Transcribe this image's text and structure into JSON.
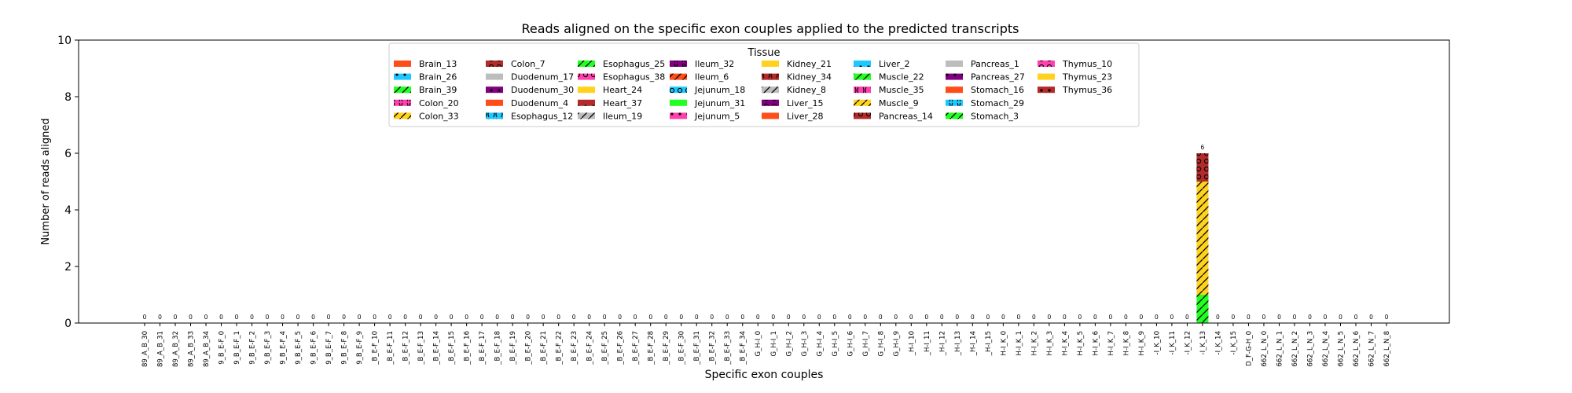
{
  "chart_data": {
    "type": "bar",
    "title": "Reads aligned on the specific exon couples applied to the predicted transcripts",
    "xlabel": "Specific exon couples",
    "ylabel": "Number of reads aligned",
    "ylim": [
      0,
      10
    ],
    "yticks": [
      "0",
      "2",
      "4",
      "6",
      "8",
      "10"
    ],
    "grid": false,
    "legend_placement": "upper-center",
    "legend_title": "Tissue",
    "categories": [
      "89_A_B_30",
      "89_A_B_31",
      "89_A_B_32",
      "89_A_B_33",
      "89_A_B_34",
      "9_B_E-F_0",
      "9_B_E-F_1",
      "9_B_E-F_2",
      "9_B_E-F_3",
      "9_B_E-F_4",
      "9_B_E-F_5",
      "9_B_E-F_6",
      "9_B_E-F_7",
      "9_B_E-F_8",
      "9_B_E-F_9",
      "_B_E-F_10",
      "_B_E-F_11",
      "_B_E-F_12",
      "_B_E-F_13",
      "_B_E-F_14",
      "_B_E-F_15",
      "_B_E-F_16",
      "_B_E-F_17",
      "_B_E-F_18",
      "_B_E-F_19",
      "_B_E-F_20",
      "_B_E-F_21",
      "_B_E-F_22",
      "_B_E-F_23",
      "_B_E-F_24",
      "_B_E-F_25",
      "_B_E-F_26",
      "_B_E-F_27",
      "_B_E-F_28",
      "_B_E-F_29",
      "_B_E-F_30",
      "_B_E-F_31",
      "_B_E-F_32",
      "_B_E-F_33",
      "_B_E-F_34",
      "G_H-I_0",
      "G_H-I_1",
      "G_H-I_2",
      "G_H-I_3",
      "G_H-I_4",
      "G_H-I_5",
      "G_H-I_6",
      "G_H-I_7",
      "G_H-I_8",
      "G_H-I_9",
      "_H-I_10",
      "_H-I_11",
      "_H-I_12",
      "_H-I_13",
      "_H-I_14",
      "_H-I_15",
      "H-I_K_0",
      "H-I_K_1",
      "H-I_K_2",
      "H-I_K_3",
      "H-I_K_4",
      "H-I_K_5",
      "H-I_K_6",
      "H-I_K_7",
      "H-I_K_8",
      "H-I_K_9",
      "-I_K_10",
      "-I_K_11",
      "-I_K_12",
      "-I_K_13",
      "-I_K_14",
      "-I_K_15",
      "D_F-G-H_0",
      "662_L_N_0",
      "662_L_N_1",
      "662_L_N_2",
      "662_L_N_3",
      "662_L_N_4",
      "662_L_N_5",
      "662_L_N_6",
      "662_L_N_7",
      "662_L_N_8"
    ],
    "totals": [
      0,
      0,
      0,
      0,
      0,
      0,
      0,
      0,
      0,
      0,
      0,
      0,
      0,
      0,
      0,
      0,
      0,
      0,
      0,
      0,
      0,
      0,
      0,
      0,
      0,
      0,
      0,
      0,
      0,
      0,
      0,
      0,
      0,
      0,
      0,
      0,
      0,
      0,
      0,
      0,
      0,
      0,
      0,
      0,
      0,
      0,
      0,
      0,
      0,
      0,
      0,
      0,
      0,
      0,
      0,
      0,
      0,
      0,
      0,
      0,
      0,
      0,
      0,
      0,
      0,
      0,
      0,
      0,
      0,
      6,
      0,
      0,
      0,
      0,
      0,
      0,
      0,
      0,
      0,
      0,
      0,
      0
    ],
    "total_labels": [
      "0",
      "0",
      "0",
      "0",
      "0",
      "0",
      "0",
      "0",
      "0",
      "0",
      "0",
      "0",
      "0",
      "0",
      "0",
      "0",
      "0",
      "0",
      "0",
      "0",
      "0",
      "0",
      "0",
      "0",
      "0",
      "0",
      "0",
      "0",
      "0",
      "0",
      "0",
      "0",
      "0",
      "0",
      "0",
      "0",
      "0",
      "0",
      "0",
      "0",
      "0",
      "0",
      "0",
      "0",
      "0",
      "0",
      "0",
      "0",
      "0",
      "0",
      "0",
      "0",
      "0",
      "0",
      "0",
      "0",
      "0",
      "0",
      "0",
      "0",
      "0",
      "0",
      "0",
      "0",
      "0",
      "0",
      "0",
      "0",
      "0",
      "6",
      "0",
      "0",
      "0",
      "0",
      "0",
      "0",
      "0",
      "0",
      "0",
      "0",
      "0",
      "0"
    ],
    "stacks": [
      {
        "category_index": 69,
        "segments": [
          {
            "series": "Muscle_22",
            "value": 1
          },
          {
            "series": "Muscle_9",
            "value": 4
          },
          {
            "series": "Pancreas_14",
            "value": 1
          }
        ]
      }
    ],
    "legend_entries": [
      {
        "name": "Brain_13",
        "color": "#ff4d1a",
        "pattern": "none"
      },
      {
        "name": "Brain_26",
        "color": "#1ec8ff",
        "pattern": "dots"
      },
      {
        "name": "Brain_39",
        "color": "#22ff22",
        "pattern": "slash"
      },
      {
        "name": "Colon_20",
        "color": "#ff3fae",
        "pattern": "ring"
      },
      {
        "name": "Colon_33",
        "color": "#ffd21f",
        "pattern": "slash"
      },
      {
        "name": "Colon_7",
        "color": "#b22a2a",
        "pattern": "circles"
      },
      {
        "name": "Duodenum_17",
        "color": "#bdbdbd",
        "pattern": "none"
      },
      {
        "name": "Duodenum_30",
        "color": "#800080",
        "pattern": "dots"
      },
      {
        "name": "Duodenum_4",
        "color": "#ff4d1a",
        "pattern": "none"
      },
      {
        "name": "Esophagus_12",
        "color": "#1ec8ff",
        "pattern": "ring"
      },
      {
        "name": "Esophagus_25",
        "color": "#22ff22",
        "pattern": "slash"
      },
      {
        "name": "Esophagus_38",
        "color": "#ff3fae",
        "pattern": "circles"
      },
      {
        "name": "Heart_24",
        "color": "#ffd21f",
        "pattern": "none"
      },
      {
        "name": "Heart_37",
        "color": "#b22a2a",
        "pattern": "dots"
      },
      {
        "name": "Ileum_19",
        "color": "#bdbdbd",
        "pattern": "slash"
      },
      {
        "name": "Ileum_32",
        "color": "#800080",
        "pattern": "ring"
      },
      {
        "name": "Ileum_6",
        "color": "#ff4d1a",
        "pattern": "slash"
      },
      {
        "name": "Jejunum_18",
        "color": "#1ec8ff",
        "pattern": "circles"
      },
      {
        "name": "Jejunum_31",
        "color": "#22ff22",
        "pattern": "none"
      },
      {
        "name": "Jejunum_5",
        "color": "#ff3fae",
        "pattern": "dots"
      },
      {
        "name": "Kidney_21",
        "color": "#ffd21f",
        "pattern": "none"
      },
      {
        "name": "Kidney_34",
        "color": "#b22a2a",
        "pattern": "ring"
      },
      {
        "name": "Kidney_8",
        "color": "#bdbdbd",
        "pattern": "slash"
      },
      {
        "name": "Liver_15",
        "color": "#800080",
        "pattern": "circles"
      },
      {
        "name": "Liver_28",
        "color": "#ff4d1a",
        "pattern": "none"
      },
      {
        "name": "Liver_2",
        "color": "#1ec8ff",
        "pattern": "dots"
      },
      {
        "name": "Muscle_22",
        "color": "#22ff22",
        "pattern": "slash"
      },
      {
        "name": "Muscle_35",
        "color": "#ff3fae",
        "pattern": "ring"
      },
      {
        "name": "Muscle_9",
        "color": "#ffd21f",
        "pattern": "slash"
      },
      {
        "name": "Pancreas_14",
        "color": "#b22a2a",
        "pattern": "circles"
      },
      {
        "name": "Pancreas_1",
        "color": "#bdbdbd",
        "pattern": "none"
      },
      {
        "name": "Pancreas_27",
        "color": "#800080",
        "pattern": "dots"
      },
      {
        "name": "Stomach_16",
        "color": "#ff4d1a",
        "pattern": "none"
      },
      {
        "name": "Stomach_29",
        "color": "#1ec8ff",
        "pattern": "ring"
      },
      {
        "name": "Stomach_3",
        "color": "#22ff22",
        "pattern": "slash"
      },
      {
        "name": "Thymus_10",
        "color": "#ff3fae",
        "pattern": "circles"
      },
      {
        "name": "Thymus_23",
        "color": "#ffd21f",
        "pattern": "none"
      },
      {
        "name": "Thymus_36",
        "color": "#b22a2a",
        "pattern": "dots"
      }
    ]
  }
}
